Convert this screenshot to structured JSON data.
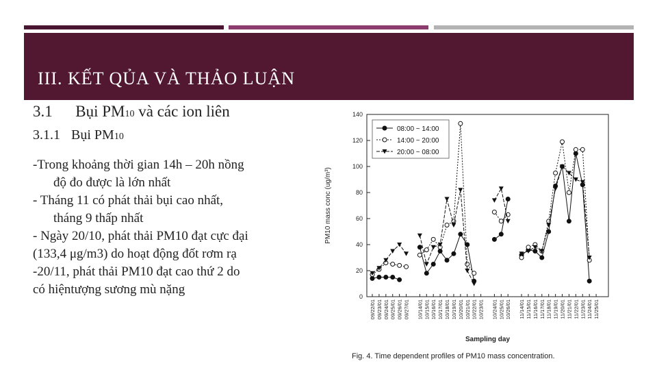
{
  "slide": {
    "title": "III.  KẾT QỦA VÀ THẢO LUẬN",
    "heading1": {
      "num": "3.1",
      "text_main": "Bụi PM",
      "sub": "10",
      "text_rest": " và các ion liên"
    },
    "heading2": {
      "num": "3.1.1",
      "text_main": "Bụi PM",
      "sub": "10"
    },
    "bullets": [
      {
        "text": "-Trong khoảng thời gian 14h – 20h nồng",
        "indent": false
      },
      {
        "text": "độ đo được là lớn nhất",
        "indent": true
      },
      {
        "text": "- Tháng 11 có phát thải bụi cao nhất,",
        "indent": false
      },
      {
        "text": "tháng 9 thấp nhất",
        "indent": true
      },
      {
        "text": "- Ngày 20/10, phát thải PM10 đạt cực đại",
        "indent": false
      },
      {
        "text": "(133,4 μg/m3) do hoạt động đốt rơm rạ",
        "indent": false
      },
      {
        "text": "-20/11, phát thải PM10 đạt cao thứ 2 do",
        "indent": false
      },
      {
        "text": "có hiệntượng sương mù nặng",
        "indent": false
      }
    ]
  },
  "colors": {
    "banner": "#521731",
    "bar1": "#4a1530",
    "bar2": "#8c3c6e",
    "bar3": "#b3b3b3"
  },
  "chart_data": {
    "type": "line",
    "ylabel": "PM10 mass conc (ug/m³)",
    "xlabel": "Sampling day",
    "caption": "Fig. 4. Time dependent profiles of PM10 mass concentration.",
    "ylim": [
      0,
      140
    ],
    "yticks": [
      0,
      20,
      40,
      60,
      80,
      100,
      120,
      140
    ],
    "legend_position": "top-left",
    "categories": [
      "09/22/01",
      "09/23/01",
      "09/24/01",
      "09/25/01",
      "09/26/01",
      "09/27/01",
      "10/14/01",
      "10/15/01",
      "10/16/01",
      "10/17/01",
      "10/18/01",
      "10/19/01",
      "10/20/01",
      "10/21/01",
      "10/22/01",
      "10/23/01",
      "10/24/01",
      "10/25/01",
      "10/26/01",
      "11/14/01",
      "11/15/01",
      "11/16/01",
      "11/17/01",
      "11/18/01",
      "11/19/01",
      "11/20/01",
      "11/21/01",
      "11/22/01",
      "11/23/01",
      "11/24/01",
      "11/25/01"
    ],
    "x_positions": [
      0,
      1,
      2,
      3,
      4,
      5,
      7,
      8,
      9,
      10,
      11,
      12,
      13,
      14,
      15,
      16,
      18,
      19,
      20,
      22,
      23,
      24,
      25,
      26,
      27,
      28,
      29,
      30,
      31,
      32,
      33
    ],
    "x_max": 34,
    "series": [
      {
        "name": "08:00 ~ 14:00",
        "marker": "filled-circle",
        "dash": "",
        "segments": [
          [
            [
              0,
              14
            ],
            [
              1,
              15
            ],
            [
              2,
              15
            ],
            [
              3,
              15
            ],
            [
              4,
              13
            ]
          ],
          [
            [
              7,
              38
            ],
            [
              8,
              18
            ],
            [
              9,
              25
            ],
            [
              10,
              35
            ],
            [
              11,
              28
            ],
            [
              12,
              33
            ],
            [
              13,
              48
            ],
            [
              14,
              40
            ],
            [
              15,
              12
            ]
          ],
          [
            [
              18,
              44
            ],
            [
              19,
              48
            ],
            [
              20,
              75
            ]
          ],
          [
            [
              22,
              32
            ],
            [
              23,
              36
            ],
            [
              24,
              35
            ],
            [
              25,
              30
            ],
            [
              26,
              50
            ],
            [
              27,
              85
            ],
            [
              28,
              100
            ],
            [
              29,
              58
            ],
            [
              30,
              110
            ],
            [
              31,
              86
            ],
            [
              32,
              12
            ]
          ]
        ]
      },
      {
        "name": "14:00 ~ 20:00",
        "marker": "open-circle",
        "dash": "2,2",
        "segments": [
          [
            [
              0,
              17
            ],
            [
              1,
              21
            ],
            [
              2,
              26
            ],
            [
              3,
              25
            ],
            [
              4,
              24
            ],
            [
              5,
              23
            ]
          ],
          [
            [
              7,
              32
            ],
            [
              8,
              36
            ],
            [
              9,
              44
            ],
            [
              10,
              38
            ],
            [
              11,
              55
            ],
            [
              12,
              58
            ],
            [
              13,
              133
            ],
            [
              14,
              25
            ],
            [
              15,
              18
            ]
          ],
          [
            [
              18,
              65
            ],
            [
              19,
              58
            ],
            [
              20,
              63
            ]
          ],
          [
            [
              22,
              30
            ],
            [
              23,
              38
            ],
            [
              24,
              40
            ],
            [
              25,
              35
            ],
            [
              26,
              58
            ],
            [
              27,
              95
            ],
            [
              28,
              119
            ],
            [
              29,
              80
            ],
            [
              30,
              113
            ],
            [
              31,
              113
            ],
            [
              32,
              28
            ]
          ]
        ]
      },
      {
        "name": "20:00 ~ 08:00",
        "marker": "filled-triangle-down",
        "dash": "5,2",
        "segments": [
          [
            [
              0,
              18
            ],
            [
              1,
              22
            ],
            [
              2,
              28
            ],
            [
              3,
              35
            ],
            [
              4,
              40
            ],
            [
              5,
              33
            ]
          ],
          [
            [
              7,
              47
            ],
            [
              8,
              25
            ],
            [
              9,
              38
            ],
            [
              10,
              40
            ],
            [
              11,
              75
            ],
            [
              12,
              55
            ],
            [
              13,
              82
            ],
            [
              14,
              20
            ],
            [
              15,
              10
            ]
          ],
          [
            [
              18,
              74
            ],
            [
              19,
              83
            ],
            [
              20,
              58
            ]
          ],
          [
            [
              22,
              33
            ],
            [
              23,
              35
            ],
            [
              24,
              38
            ],
            [
              25,
              35
            ],
            [
              26,
              55
            ],
            [
              27,
              83
            ],
            [
              28,
              100
            ],
            [
              29,
              95
            ],
            [
              30,
              90
            ],
            [
              31,
              88
            ],
            [
              32,
              30
            ]
          ]
        ]
      }
    ]
  }
}
